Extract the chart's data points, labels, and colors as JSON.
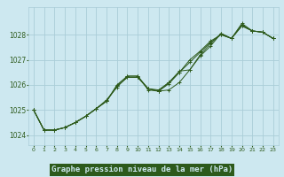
{
  "xlabel": "Graphe pression niveau de la mer (hPa)",
  "bg_color": "#cde8f0",
  "grid_color": "#aacdd8",
  "line_color": "#2d5a1b",
  "xlabel_bg": "#2d5a1b",
  "xlabel_fg": "#cde8f0",
  "xlim": [
    -0.5,
    23.5
  ],
  "ylim": [
    1023.6,
    1029.1
  ],
  "yticks": [
    1024,
    1025,
    1026,
    1027,
    1028
  ],
  "xticks": [
    0,
    1,
    2,
    3,
    4,
    5,
    6,
    7,
    8,
    9,
    10,
    11,
    12,
    13,
    14,
    15,
    16,
    17,
    18,
    19,
    20,
    21,
    22,
    23
  ],
  "series": [
    [
      1025.0,
      1024.2,
      1024.2,
      1024.3,
      1024.5,
      1024.75,
      1025.05,
      1025.35,
      1026.0,
      1026.35,
      1026.35,
      1025.8,
      1025.75,
      1026.1,
      1026.55,
      1026.6,
      1027.15,
      1027.55,
      1028.05,
      1027.85,
      1028.45,
      1028.15,
      1028.1,
      1027.85
    ],
    [
      1025.0,
      1024.2,
      1024.2,
      1024.3,
      1024.5,
      1024.75,
      1025.05,
      1025.35,
      1025.95,
      1026.3,
      1026.3,
      1025.85,
      1025.75,
      1025.8,
      1026.1,
      1026.6,
      1027.2,
      1027.65,
      1028.05,
      1027.85,
      1028.35,
      1028.15,
      1028.1,
      1027.85
    ],
    [
      1025.0,
      1024.2,
      1024.2,
      1024.3,
      1024.5,
      1024.75,
      1025.05,
      1025.35,
      1025.95,
      1026.3,
      1026.3,
      1025.85,
      1025.8,
      1026.1,
      1026.5,
      1027.0,
      1027.35,
      1027.75,
      1028.0,
      1027.85,
      1028.35,
      1028.15,
      1028.1,
      1027.85
    ],
    [
      1025.0,
      1024.2,
      1024.2,
      1024.3,
      1024.5,
      1024.75,
      1025.05,
      1025.4,
      1025.9,
      1026.35,
      1026.35,
      1025.85,
      1025.75,
      1026.05,
      1026.5,
      1026.9,
      1027.3,
      1027.7,
      1028.0,
      1027.85,
      1028.4,
      1028.15,
      1028.1,
      1027.85
    ]
  ]
}
